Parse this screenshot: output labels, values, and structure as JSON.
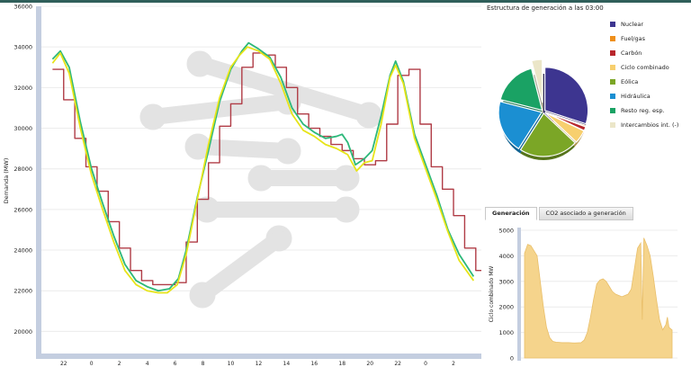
{
  "chart_data": [
    {
      "type": "line",
      "ylabel": "Demanda (MW)",
      "ylim": [
        19000,
        36000
      ],
      "y_ticks": [
        "20000",
        "22000",
        "24000",
        "26000",
        "28000",
        "30000",
        "32000",
        "34000",
        "36000"
      ],
      "x_ticks": [
        "22",
        "0",
        "2",
        "4",
        "6",
        "8",
        "10",
        "12",
        "14",
        "16",
        "18",
        "20",
        "22",
        "0",
        "2"
      ],
      "grid": true,
      "series": [
        {
          "color": "#b03c46",
          "points": [
            [
              21,
              32900
            ],
            [
              22,
              31400
            ],
            [
              23,
              29500
            ],
            [
              24,
              28100
            ],
            [
              25,
              26900
            ],
            [
              26,
              25400
            ],
            [
              27,
              24100
            ],
            [
              28,
              23000
            ],
            [
              29,
              22500
            ],
            [
              30,
              22300
            ],
            [
              31,
              22300
            ],
            [
              32,
              22400
            ],
            [
              33,
              24400
            ],
            [
              34,
              26500
            ],
            [
              35,
              28300
            ],
            [
              36,
              30100
            ],
            [
              37,
              31200
            ],
            [
              38,
              33000
            ],
            [
              39,
              33700
            ],
            [
              40,
              33600
            ],
            [
              41,
              33000
            ],
            [
              42,
              32000
            ],
            [
              43,
              30700
            ],
            [
              44,
              30000
            ],
            [
              45,
              29600
            ],
            [
              46,
              29200
            ],
            [
              47,
              28900
            ],
            [
              48,
              28500
            ],
            [
              49,
              28200
            ],
            [
              50,
              28400
            ],
            [
              51,
              30200
            ],
            [
              52,
              32600
            ],
            [
              53,
              32900
            ],
            [
              54,
              30200
            ],
            [
              55,
              28100
            ],
            [
              56,
              27000
            ],
            [
              57,
              25700
            ],
            [
              58,
              24100
            ],
            [
              59,
              23000
            ]
          ]
        },
        {
          "color": "#2db87a",
          "points": [
            [
              21,
              33400
            ],
            [
              21.7,
              33800
            ],
            [
              22.5,
              33000
            ],
            [
              23.5,
              30300
            ],
            [
              24.5,
              28000
            ],
            [
              25.5,
              26300
            ],
            [
              26.5,
              24700
            ],
            [
              27.5,
              23300
            ],
            [
              28.5,
              22500
            ],
            [
              29.5,
              22200
            ],
            [
              30.5,
              22000
            ],
            [
              31.5,
              22100
            ],
            [
              32.3,
              22600
            ],
            [
              33,
              24000
            ],
            [
              34,
              26600
            ],
            [
              35,
              28900
            ],
            [
              36,
              31300
            ],
            [
              37,
              32900
            ],
            [
              38,
              33800
            ],
            [
              38.6,
              34200
            ],
            [
              39.5,
              33900
            ],
            [
              40.5,
              33500
            ],
            [
              41.5,
              32500
            ],
            [
              42.5,
              31000
            ],
            [
              43.5,
              30200
            ],
            [
              44.5,
              29800
            ],
            [
              45.5,
              29500
            ],
            [
              46.5,
              29600
            ],
            [
              47,
              29700
            ],
            [
              47.5,
              29300
            ],
            [
              48.2,
              28200
            ],
            [
              49,
              28500
            ],
            [
              49.7,
              28900
            ],
            [
              50.5,
              30600
            ],
            [
              51.3,
              32600
            ],
            [
              51.8,
              33300
            ],
            [
              52.5,
              32300
            ],
            [
              53.5,
              29700
            ],
            [
              54.5,
              28200
            ],
            [
              55.5,
              26700
            ],
            [
              56.5,
              25000
            ],
            [
              57.5,
              23800
            ],
            [
              58.8,
              22700
            ]
          ]
        },
        {
          "color": "#e7e41a",
          "points": [
            [
              21,
              33200
            ],
            [
              21.7,
              33700
            ],
            [
              22.5,
              32700
            ],
            [
              23.5,
              30000
            ],
            [
              24.5,
              27700
            ],
            [
              25.5,
              26000
            ],
            [
              26.5,
              24400
            ],
            [
              27.5,
              23000
            ],
            [
              28.5,
              22300
            ],
            [
              29.5,
              22000
            ],
            [
              30.5,
              21900
            ],
            [
              31.3,
              21900
            ],
            [
              32.2,
              22300
            ],
            [
              33,
              23800
            ],
            [
              34,
              26500
            ],
            [
              35,
              29200
            ],
            [
              36,
              31500
            ],
            [
              37,
              33000
            ],
            [
              37.8,
              33600
            ],
            [
              38.5,
              34000
            ],
            [
              39.5,
              33800
            ],
            [
              40.5,
              33400
            ],
            [
              41.5,
              32200
            ],
            [
              42.5,
              30700
            ],
            [
              43.5,
              29900
            ],
            [
              44.5,
              29600
            ],
            [
              45.5,
              29200
            ],
            [
              46.5,
              29000
            ],
            [
              47.5,
              28700
            ],
            [
              48.3,
              27900
            ],
            [
              49,
              28300
            ],
            [
              49.7,
              28400
            ],
            [
              50.5,
              30200
            ],
            [
              51.3,
              32500
            ],
            [
              51.8,
              33100
            ],
            [
              52.5,
              32200
            ],
            [
              53.5,
              29500
            ],
            [
              54.5,
              28000
            ],
            [
              55.5,
              26500
            ],
            [
              56.5,
              24900
            ],
            [
              57.5,
              23500
            ],
            [
              58.8,
              22500
            ]
          ]
        }
      ]
    },
    {
      "type": "pie",
      "title": "Estructura de generación a las 03:00",
      "slices": [
        {
          "name": "Nuclear",
          "value": 30,
          "color": "#3d3590"
        },
        {
          "name": "Fuel/gas",
          "value": 0.5,
          "color": "#ef8f1b"
        },
        {
          "name": "Carbón",
          "value": 1.5,
          "color": "#b8262c"
        },
        {
          "name": "Ciclo combinado",
          "value": 5,
          "color": "#f7cf6e"
        },
        {
          "name": "Eólica",
          "value": 22,
          "color": "#7ba626"
        },
        {
          "name": "Hidráulica",
          "value": 20,
          "color": "#1b8fd2"
        },
        {
          "name": "Resto reg. esp.",
          "value": 17,
          "color": "#1aa264"
        },
        {
          "name": "Intercambios int. (-)",
          "value": 4,
          "color": "#ebe6c8"
        }
      ]
    },
    {
      "type": "area",
      "ylabel": "Ciclo combinado MW",
      "ylim": [
        0,
        5000
      ],
      "y_ticks": [
        "0",
        "1000",
        "2000",
        "3000",
        "4000",
        "5000"
      ],
      "color": "#f5d48c",
      "points": [
        [
          0,
          4100
        ],
        [
          1,
          4450
        ],
        [
          2,
          4400
        ],
        [
          3,
          4200
        ],
        [
          4,
          4000
        ],
        [
          5,
          3000
        ],
        [
          6,
          2000
        ],
        [
          7,
          1200
        ],
        [
          8,
          800
        ],
        [
          9,
          650
        ],
        [
          10,
          620
        ],
        [
          12,
          600
        ],
        [
          14,
          600
        ],
        [
          16,
          590
        ],
        [
          18,
          600
        ],
        [
          19,
          700
        ],
        [
          20,
          1000
        ],
        [
          21,
          1600
        ],
        [
          22,
          2300
        ],
        [
          23,
          2900
        ],
        [
          24,
          3050
        ],
        [
          25,
          3100
        ],
        [
          26,
          3000
        ],
        [
          27,
          2800
        ],
        [
          28,
          2600
        ],
        [
          29,
          2500
        ],
        [
          31,
          2400
        ],
        [
          33,
          2500
        ],
        [
          34,
          2700
        ],
        [
          35,
          3500
        ],
        [
          36,
          4300
        ],
        [
          37,
          4500
        ],
        [
          37.5,
          1500
        ],
        [
          38,
          4700
        ],
        [
          39,
          4400
        ],
        [
          40,
          4000
        ],
        [
          41,
          3200
        ],
        [
          42,
          2300
        ],
        [
          43,
          1500
        ],
        [
          44,
          1100
        ],
        [
          45,
          1300
        ],
        [
          45.5,
          1600
        ],
        [
          46,
          1200
        ],
        [
          47,
          1100
        ]
      ]
    }
  ],
  "tabs": [
    {
      "label": "Generación",
      "active": true
    },
    {
      "label": "CO2 asociado a generación",
      "active": false
    }
  ]
}
